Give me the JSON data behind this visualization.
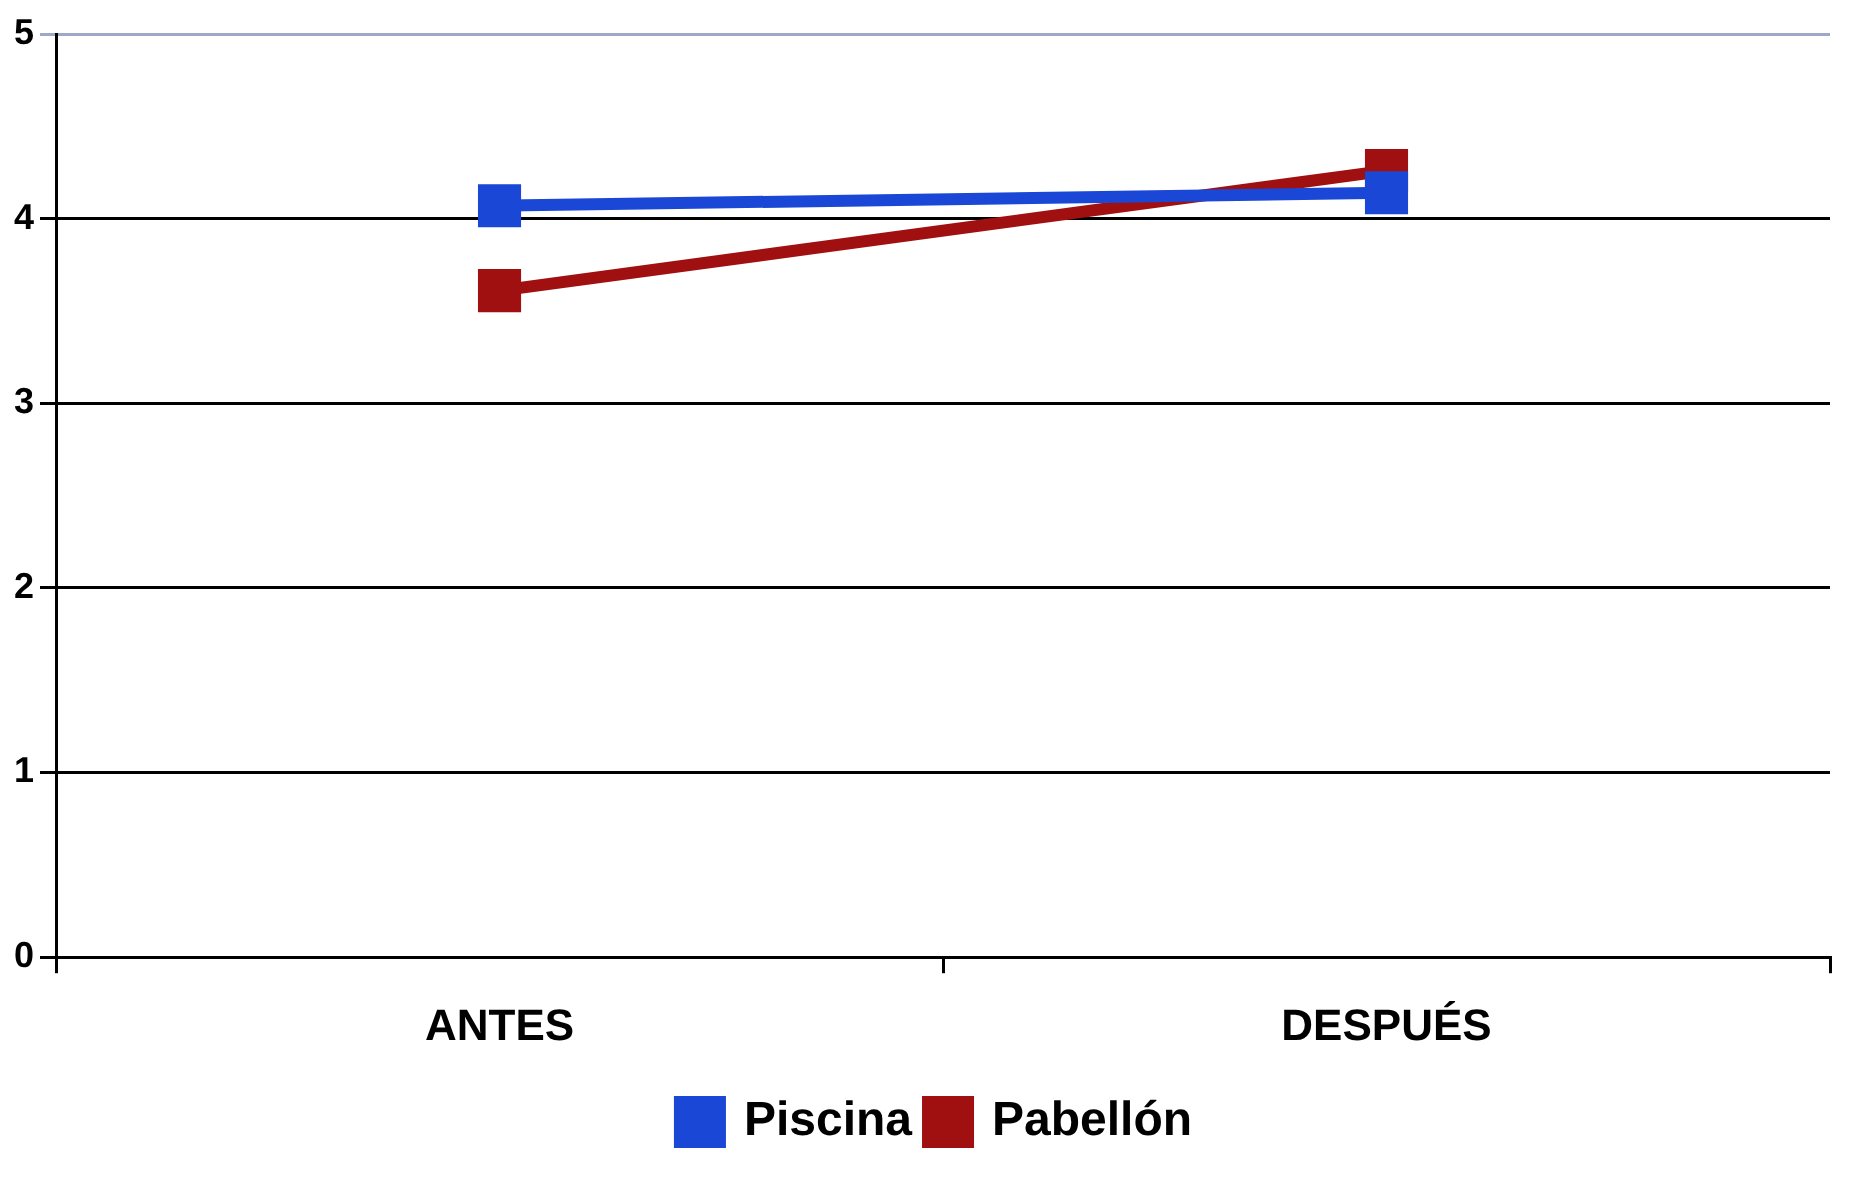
{
  "chart_data": {
    "type": "line",
    "categories": [
      "ANTES",
      "DESPUÉS"
    ],
    "series": [
      {
        "name": "Piscina",
        "color": "#1a47d6",
        "values": [
          4.07,
          4.14
        ]
      },
      {
        "name": "Pabellón",
        "color": "#a01010",
        "values": [
          3.61,
          4.26
        ]
      }
    ],
    "ylim": [
      0,
      5
    ],
    "yticks": [
      0,
      1,
      2,
      3,
      4,
      5
    ],
    "grid": "y",
    "legend": "bottom",
    "marker": "square",
    "line_style": "solid"
  }
}
